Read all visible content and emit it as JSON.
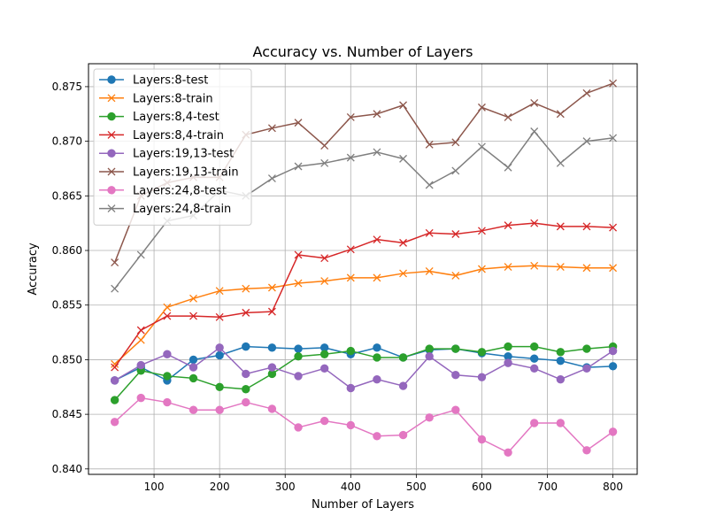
{
  "chart_data": {
    "type": "line",
    "title": "Accuracy vs. Number of Layers",
    "xlabel": "Number of Layers",
    "ylabel": "Accuracy",
    "xlim": [
      0,
      837
    ],
    "ylim": [
      0.8395,
      0.8771
    ],
    "xticks": [
      100,
      200,
      300,
      400,
      500,
      600,
      700,
      800
    ],
    "yticks": [
      0.84,
      0.845,
      0.85,
      0.855,
      0.86,
      0.865,
      0.87,
      0.875
    ],
    "ytick_labels": [
      "0.840",
      "0.845",
      "0.850",
      "0.855",
      "0.860",
      "0.865",
      "0.870",
      "0.875"
    ],
    "grid": true,
    "legend_position": "upper-left",
    "x": [
      40,
      80,
      120,
      160,
      200,
      240,
      280,
      320,
      360,
      400,
      440,
      480,
      520,
      560,
      600,
      640,
      680,
      720,
      760,
      800
    ],
    "series": [
      {
        "name": "Layers:8-test",
        "color": "#1f77b4",
        "marker": "circle",
        "values": [
          0.8481,
          0.8493,
          0.8481,
          0.85,
          0.8504,
          0.8512,
          0.8511,
          0.851,
          0.8511,
          0.8505,
          0.8511,
          0.8502,
          0.8509,
          0.851,
          0.8506,
          0.8503,
          0.8501,
          0.8499,
          0.8493,
          0.8494
        ]
      },
      {
        "name": "Layers:8-train",
        "color": "#ff7f0e",
        "marker": "x",
        "values": [
          0.8496,
          0.8518,
          0.8548,
          0.8556,
          0.8563,
          0.8565,
          0.8566,
          0.857,
          0.8572,
          0.8575,
          0.8575,
          0.8579,
          0.8581,
          0.8577,
          0.8583,
          0.8585,
          0.8586,
          0.8585,
          0.8584,
          0.8584
        ]
      },
      {
        "name": "Layers:8,4-test",
        "color": "#2ca02c",
        "marker": "circle",
        "values": [
          0.8463,
          0.849,
          0.8485,
          0.8483,
          0.8475,
          0.8473,
          0.8487,
          0.8503,
          0.8505,
          0.8508,
          0.8502,
          0.8502,
          0.851,
          0.851,
          0.8507,
          0.8512,
          0.8512,
          0.8507,
          0.851,
          0.8512
        ]
      },
      {
        "name": "Layers:8,4-train",
        "color": "#d62728",
        "marker": "x",
        "values": [
          0.8493,
          0.8527,
          0.854,
          0.854,
          0.8539,
          0.8543,
          0.8544,
          0.8596,
          0.8593,
          0.8601,
          0.861,
          0.8607,
          0.8616,
          0.8615,
          0.8618,
          0.8623,
          0.8625,
          0.8622,
          0.8622,
          0.8621
        ]
      },
      {
        "name": "Layers:19,13-test",
        "color": "#9467bd",
        "marker": "circle",
        "values": [
          0.8481,
          0.8495,
          0.8505,
          0.8493,
          0.8511,
          0.8487,
          0.8493,
          0.8485,
          0.8492,
          0.8474,
          0.8482,
          0.8476,
          0.8503,
          0.8486,
          0.8484,
          0.8497,
          0.8492,
          0.8482,
          0.8492,
          0.8508
        ]
      },
      {
        "name": "Layers:19,13-train",
        "color": "#8c564b",
        "marker": "x",
        "values": [
          0.8589,
          0.865,
          0.8662,
          0.8667,
          0.8667,
          0.8706,
          0.8712,
          0.8717,
          0.8696,
          0.8722,
          0.8725,
          0.8733,
          0.8697,
          0.8699,
          0.8731,
          0.8722,
          0.8735,
          0.8725,
          0.8744,
          0.8753
        ]
      },
      {
        "name": "Layers:24,8-test",
        "color": "#e377c2",
        "marker": "circle",
        "values": [
          0.8443,
          0.8465,
          0.8461,
          0.8454,
          0.8454,
          0.8461,
          0.8455,
          0.8438,
          0.8444,
          0.844,
          0.843,
          0.8431,
          0.8447,
          0.8454,
          0.8427,
          0.8415,
          0.8442,
          0.8442,
          0.8417,
          0.8434
        ]
      },
      {
        "name": "Layers:24,8-train",
        "color": "#7f7f7f",
        "marker": "x",
        "values": [
          0.8565,
          0.8596,
          0.8627,
          0.8632,
          0.8655,
          0.865,
          0.8666,
          0.8677,
          0.868,
          0.8685,
          0.869,
          0.8684,
          0.866,
          0.8673,
          0.8695,
          0.8676,
          0.8709,
          0.868,
          0.87,
          0.8703
        ]
      }
    ]
  }
}
